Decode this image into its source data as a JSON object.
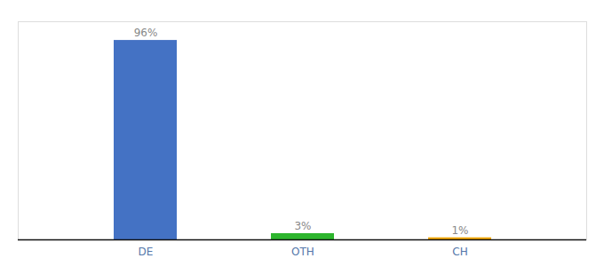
{
  "chart_data": {
    "type": "bar",
    "categories": [
      "DE",
      "OTH",
      "CH"
    ],
    "values": [
      96,
      3,
      1
    ],
    "value_labels": [
      "96%",
      "3%",
      "1%"
    ],
    "colors": [
      "#4472c4",
      "#2db52d",
      "#f0a500"
    ],
    "ylim": [
      0,
      105
    ],
    "data_labels": true,
    "tick_labels": "x",
    "grid": false
  }
}
